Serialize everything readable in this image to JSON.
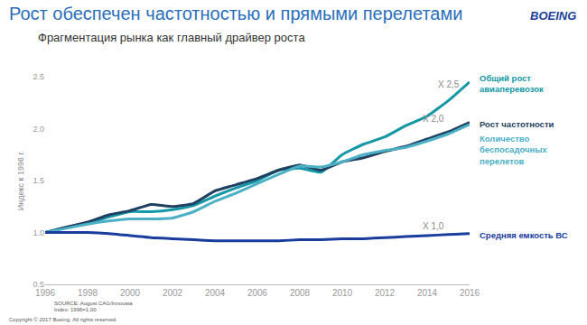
{
  "chart_data": {
    "type": "line",
    "title": "Рост обеспечен частотностью и прямыми перелетами",
    "subtitle": "Фрагментация рынка как главный драйвер роста",
    "logo": "BOEING",
    "y_label": "Индекс к 1996 г.",
    "x": [
      1996,
      1997,
      1998,
      1999,
      2000,
      2001,
      2002,
      2003,
      2004,
      2005,
      2006,
      2007,
      2008,
      2009,
      2010,
      2011,
      2012,
      2013,
      2014,
      2015,
      2016
    ],
    "series": [
      {
        "name": "Общий рост авиаперевозок",
        "color": "#1497a6",
        "values": [
          1.0,
          1.05,
          1.09,
          1.15,
          1.2,
          1.2,
          1.22,
          1.26,
          1.35,
          1.43,
          1.5,
          1.6,
          1.62,
          1.58,
          1.75,
          1.85,
          1.92,
          2.03,
          2.12,
          2.27,
          2.45
        ]
      },
      {
        "name": "Рост частотности",
        "color": "#1f4060",
        "values": [
          1.0,
          1.05,
          1.1,
          1.17,
          1.21,
          1.27,
          1.25,
          1.28,
          1.4,
          1.46,
          1.52,
          1.6,
          1.65,
          1.6,
          1.68,
          1.72,
          1.78,
          1.83,
          1.9,
          1.97,
          2.06
        ]
      },
      {
        "name": "Количество беспосадочных перелетов",
        "color": "#4bb0c6",
        "values": [
          1.0,
          1.04,
          1.08,
          1.11,
          1.13,
          1.13,
          1.14,
          1.2,
          1.3,
          1.38,
          1.47,
          1.56,
          1.64,
          1.63,
          1.68,
          1.75,
          1.79,
          1.82,
          1.88,
          1.95,
          2.04
        ]
      },
      {
        "name": "Средняя емкость ВС",
        "color": "#1a3c9c",
        "values": [
          1.0,
          1.0,
          1.0,
          0.99,
          0.97,
          0.95,
          0.94,
          0.93,
          0.92,
          0.92,
          0.92,
          0.92,
          0.93,
          0.93,
          0.94,
          0.94,
          0.95,
          0.96,
          0.97,
          0.98,
          0.99
        ]
      }
    ],
    "xlim": [
      1996,
      2016
    ],
    "xticks": [
      1996,
      1998,
      2000,
      2002,
      2004,
      2006,
      2008,
      2010,
      2012,
      2014,
      2016
    ],
    "ylim": [
      0.5,
      2.5
    ],
    "yticks": [
      0.5,
      {
        "value": 1.0,
        "label": "1.0"
      },
      1.5,
      {
        "value": 2.0,
        "label": "2.0"
      },
      2.5
    ],
    "grid": false,
    "annotations": [
      {
        "text": "X 2,5",
        "x": 2015,
        "y": 2.43
      },
      {
        "text": "X 2,0",
        "x": 2014.3,
        "y": 2.1
      },
      {
        "text": "X 1,0",
        "x": 2014.3,
        "y": 1.06
      }
    ],
    "notes": [
      "SOURCE: August CAG/Innovata",
      "Index: 1996=1.00",
      "Copyright © 2017 Boeing. All rights reserved."
    ]
  }
}
